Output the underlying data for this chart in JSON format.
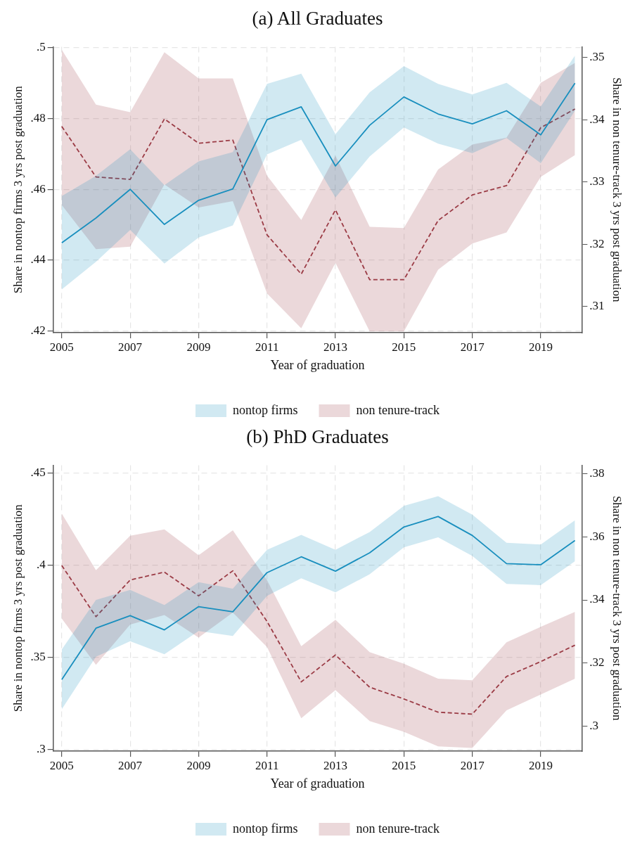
{
  "chart_data": [
    {
      "type": "line",
      "title": "(a) All Graduates",
      "xlabel": "Year of graduation",
      "ylabel": "Share in nontop firms 3 yrs post graduation",
      "y2label": "Share in non tenure-track 3 yrs post graduation",
      "x": [
        2005,
        2006,
        2007,
        2008,
        2009,
        2010,
        2011,
        2012,
        2013,
        2014,
        2015,
        2016,
        2017,
        2018,
        2019,
        2020
      ],
      "series": [
        {
          "name": "nontop firms",
          "color": "#1a8fbf",
          "line_style": "solid",
          "values": [
            0.4449,
            0.4519,
            0.46,
            0.4501,
            0.4569,
            0.4601,
            0.4797,
            0.4833,
            0.4666,
            0.4781,
            0.4861,
            0.4813,
            0.4785,
            0.4822,
            0.4754,
            0.49
          ],
          "lower": [
            0.4317,
            0.4395,
            0.4485,
            0.439,
            0.4464,
            0.4498,
            0.4699,
            0.474,
            0.4577,
            0.4693,
            0.4775,
            0.4729,
            0.4702,
            0.4745,
            0.4674,
            0.4822
          ],
          "upper": [
            0.4581,
            0.4638,
            0.4713,
            0.4612,
            0.4679,
            0.4705,
            0.4898,
            0.4927,
            0.4756,
            0.4874,
            0.4948,
            0.4898,
            0.4868,
            0.4901,
            0.4834,
            0.4978
          ]
        },
        {
          "name": "non tenure-track",
          "color": "#9b3b45",
          "line_style": "dashed",
          "axis": "y2",
          "values": [
            0.3389,
            0.3308,
            0.3304,
            0.3401,
            0.3362,
            0.3367,
            0.3215,
            0.3152,
            0.3255,
            0.3143,
            0.3143,
            0.3238,
            0.3279,
            0.3294,
            0.3387,
            0.3417
          ],
          "lower": [
            0.3263,
            0.3192,
            0.3196,
            0.3296,
            0.3259,
            0.3269,
            0.3121,
            0.3065,
            0.317,
            0.306,
            0.306,
            0.3159,
            0.3201,
            0.3219,
            0.3308,
            0.3343
          ],
          "upper": [
            0.3512,
            0.3424,
            0.3412,
            0.3508,
            0.3466,
            0.3466,
            0.331,
            0.3239,
            0.3342,
            0.3228,
            0.3226,
            0.332,
            0.336,
            0.3371,
            0.3459,
            0.3491
          ]
        }
      ],
      "xlim": [
        2004.75,
        2020.2
      ],
      "xticks": [
        2005,
        2007,
        2009,
        2011,
        2013,
        2015,
        2017,
        2019
      ],
      "ylim": [
        0.4195,
        0.5003
      ],
      "yticks": [
        {
          "value": 0.42,
          "label": ".42"
        },
        {
          "value": 0.44,
          "label": ".44"
        },
        {
          "value": 0.46,
          "label": ".46"
        },
        {
          "value": 0.48,
          "label": ".48"
        },
        {
          "value": 0.5,
          "label": ".5"
        }
      ],
      "y2lim": [
        0.3058,
        0.3517
      ],
      "y2ticks": [
        {
          "value": 0.31,
          "label": ".31"
        },
        {
          "value": 0.32,
          "label": ".32"
        },
        {
          "value": 0.33,
          "label": ".33"
        },
        {
          "value": 0.34,
          "label": ".34"
        },
        {
          "value": 0.35,
          "label": ".35"
        }
      ],
      "grid": true,
      "legend": "bottom",
      "marker": "none"
    },
    {
      "type": "line",
      "title": "(b) PhD Graduates",
      "xlabel": "Year of graduation",
      "ylabel": "Share in nontop firms 3 yrs post graduation",
      "y2label": "Share in non tenure-track 3 yrs post graduation",
      "x": [
        2005,
        2006,
        2007,
        2008,
        2009,
        2010,
        2011,
        2012,
        2013,
        2014,
        2015,
        2016,
        2017,
        2018,
        2019,
        2020
      ],
      "series": [
        {
          "name": "nontop firms",
          "color": "#1a8fbf",
          "line_style": "solid",
          "values": [
            0.3379,
            0.3658,
            0.3726,
            0.3649,
            0.3775,
            0.3747,
            0.396,
            0.4046,
            0.3968,
            0.4068,
            0.4208,
            0.4265,
            0.4162,
            0.4009,
            0.4003,
            0.4135
          ],
          "lower": [
            0.3217,
            0.3503,
            0.3587,
            0.3516,
            0.3643,
            0.3616,
            0.3834,
            0.3929,
            0.3853,
            0.3951,
            0.4097,
            0.4152,
            0.4051,
            0.3899,
            0.3892,
            0.4022
          ],
          "upper": [
            0.3542,
            0.3812,
            0.3866,
            0.3784,
            0.3908,
            0.3873,
            0.4084,
            0.4165,
            0.4084,
            0.4181,
            0.4323,
            0.4375,
            0.4275,
            0.4122,
            0.4113,
            0.4245
          ]
        },
        {
          "name": "non tenure-track",
          "color": "#9b3b45",
          "line_style": "dashed",
          "axis": "y2",
          "values": [
            0.3509,
            0.3347,
            0.3463,
            0.3488,
            0.3413,
            0.3492,
            0.3332,
            0.3141,
            0.3226,
            0.3124,
            0.3087,
            0.3045,
            0.3039,
            0.3158,
            0.3205,
            0.3257
          ],
          "lower": [
            0.3341,
            0.3195,
            0.3322,
            0.3352,
            0.3281,
            0.336,
            0.3251,
            0.3026,
            0.3115,
            0.3017,
            0.2983,
            0.2937,
            0.2932,
            0.3051,
            0.3101,
            0.3151
          ],
          "upper": [
            0.3673,
            0.3494,
            0.3603,
            0.3623,
            0.3541,
            0.362,
            0.3462,
            0.3254,
            0.3337,
            0.3235,
            0.3198,
            0.3151,
            0.3146,
            0.3266,
            0.3315,
            0.3362
          ]
        }
      ],
      "xlim": [
        2004.75,
        2020.2
      ],
      "xticks": [
        2005,
        2007,
        2009,
        2011,
        2013,
        2015,
        2017,
        2019
      ],
      "ylim": [
        0.299,
        0.4544
      ],
      "yticks": [
        {
          "value": 0.3,
          "label": ".3"
        },
        {
          "value": 0.35,
          "label": ".35"
        },
        {
          "value": 0.4,
          "label": ".4"
        },
        {
          "value": 0.45,
          "label": ".45"
        }
      ],
      "y2lim": [
        0.2922,
        0.3826
      ],
      "y2ticks": [
        {
          "value": 0.3,
          "label": ".3"
        },
        {
          "value": 0.32,
          "label": ".32"
        },
        {
          "value": 0.34,
          "label": ".34"
        },
        {
          "value": 0.36,
          "label": ".36"
        },
        {
          "value": 0.38,
          "label": ".38"
        }
      ],
      "grid": true,
      "legend": "bottom",
      "marker": "none"
    }
  ]
}
